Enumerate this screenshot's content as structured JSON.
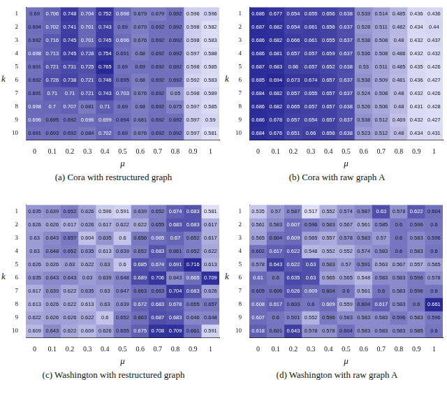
{
  "chart_data": [
    {
      "type": "heatmap",
      "title": "(a) Cora with restructured graph",
      "x_label": "μ",
      "y_label": "k",
      "categories": [
        0,
        0.1,
        0.2,
        0.3,
        0.4,
        0.5,
        0.6,
        0.7,
        0.8,
        0.9,
        1
      ],
      "ylim": [
        0.5,
        10.5
      ],
      "yticks": [
        1,
        2,
        3,
        4,
        5,
        6,
        7,
        8,
        9,
        10
      ],
      "data_labels": true,
      "cells": [
        [
          0.69,
          0.706,
          0.748,
          0.704,
          0.752,
          0.698,
          0.679,
          0.679,
          0.692,
          0.596,
          0.596
        ],
        [
          0.694,
          0.702,
          0.741,
          0.701,
          0.743,
          0.69,
          0.679,
          0.692,
          0.692,
          0.598,
          0.582
        ],
        [
          0.692,
          0.716,
          0.745,
          0.701,
          0.745,
          0.696,
          0.676,
          0.692,
          0.692,
          0.598,
          0.583
        ],
        [
          0.698,
          0.713,
          0.745,
          0.728,
          0.754,
          0.691,
          0.68,
          0.692,
          0.692,
          0.597,
          0.588
        ],
        [
          0.691,
          0.721,
          0.731,
          0.725,
          0.765,
          0.69,
          0.69,
          0.692,
          0.692,
          0.598,
          0.585
        ],
        [
          0.692,
          0.726,
          0.738,
          0.721,
          0.746,
          0.695,
          0.68,
          0.692,
          0.692,
          0.592,
          0.583
        ],
        [
          0.691,
          0.71,
          0.71,
          0.721,
          0.743,
          0.703,
          0.676,
          0.692,
          0.65,
          0.598,
          0.589
        ],
        [
          0.698,
          0.7,
          0.707,
          0.681,
          0.71,
          0.69,
          0.68,
          0.692,
          0.675,
          0.597,
          0.585
        ],
        [
          0.696,
          0.695,
          0.692,
          0.696,
          0.699,
          0.694,
          0.681,
          0.692,
          0.692,
          0.597,
          0.59
        ],
        [
          0.691,
          0.693,
          0.692,
          0.684,
          0.702,
          0.69,
          0.676,
          0.692,
          0.692,
          0.597,
          0.581
        ]
      ]
    },
    {
      "type": "heatmap",
      "title": "(b) Cora with raw graph A",
      "x_label": "μ",
      "y_label": "k",
      "categories": [
        0,
        0.1,
        0.2,
        0.3,
        0.4,
        0.5,
        0.6,
        0.7,
        0.8,
        0.9,
        1
      ],
      "ylim": [
        0.5,
        10.5
      ],
      "yticks": [
        1,
        2,
        3,
        4,
        5,
        6,
        7,
        8,
        9,
        10
      ],
      "data_labels": true,
      "cells": [
        [
          0.686,
          0.677,
          0.654,
          0.655,
          0.656,
          0.638,
          0.539,
          0.514,
          0.485,
          0.436,
          0.436
        ],
        [
          0.687,
          0.682,
          0.654,
          0.661,
          0.656,
          0.637,
          0.528,
          0.511,
          0.482,
          0.434,
          0.44
        ],
        [
          0.686,
          0.682,
          0.666,
          0.661,
          0.655,
          0.637,
          0.538,
          0.508,
          0.48,
          0.432,
          0.437
        ],
        [
          0.686,
          0.681,
          0.657,
          0.657,
          0.659,
          0.637,
          0.536,
          0.508,
          0.486,
          0.432,
          0.432
        ],
        [
          0.687,
          0.683,
          0.66,
          0.657,
          0.652,
          0.638,
          0.53,
          0.511,
          0.485,
          0.435,
          0.426
        ],
        [
          0.685,
          0.694,
          0.673,
          0.674,
          0.657,
          0.637,
          0.538,
          0.509,
          0.481,
          0.436,
          0.427
        ],
        [
          0.684,
          0.682,
          0.657,
          0.655,
          0.657,
          0.637,
          0.524,
          0.508,
          0.48,
          0.432,
          0.426
        ],
        [
          0.686,
          0.682,
          0.665,
          0.657,
          0.657,
          0.638,
          0.526,
          0.506,
          0.48,
          0.431,
          0.428
        ],
        [
          0.686,
          0.678,
          0.657,
          0.654,
          0.657,
          0.637,
          0.538,
          0.512,
          0.469,
          0.432,
          0.427
        ],
        [
          0.684,
          0.676,
          0.651,
          0.66,
          0.656,
          0.638,
          0.523,
          0.512,
          0.48,
          0.434,
          0.431
        ]
      ]
    },
    {
      "type": "heatmap",
      "title": "(c) Washington with restructured graph",
      "x_label": "μ",
      "y_label": "k",
      "categories": [
        0,
        0.1,
        0.2,
        0.3,
        0.4,
        0.5,
        0.6,
        0.7,
        0.8,
        0.9,
        1
      ],
      "ylim": [
        0.5,
        10.5
      ],
      "yticks": [
        1,
        2,
        3,
        4,
        5,
        6,
        7,
        8,
        9,
        10
      ],
      "data_labels": true,
      "cells": [
        [
          0.635,
          0.639,
          0.652,
          0.626,
          0.596,
          0.591,
          0.639,
          0.652,
          0.674,
          0.683,
          0.581
        ],
        [
          0.626,
          0.626,
          0.617,
          0.626,
          0.617,
          0.622,
          0.622,
          0.655,
          0.683,
          0.683,
          0.617
        ],
        [
          0.63,
          0.643,
          0.657,
          0.604,
          0.635,
          0.6,
          0.656,
          0.665,
          0.67,
          0.652,
          0.617
        ],
        [
          0.63,
          0.648,
          0.652,
          0.635,
          0.613,
          0.639,
          0.652,
          0.683,
          0.661,
          0.652,
          0.622
        ],
        [
          0.626,
          0.626,
          0.63,
          0.622,
          0.63,
          0.6,
          0.685,
          0.674,
          0.691,
          0.716,
          0.613
        ],
        [
          0.635,
          0.643,
          0.643,
          0.63,
          0.639,
          0.648,
          0.689,
          0.706,
          0.643,
          0.665,
          0.709
        ],
        [
          0.617,
          0.639,
          0.622,
          0.635,
          0.63,
          0.647,
          0.663,
          0.663,
          0.704,
          0.683,
          0.626
        ],
        [
          0.613,
          0.626,
          0.622,
          0.613,
          0.63,
          0.639,
          0.672,
          0.683,
          0.678,
          0.655,
          0.657
        ],
        [
          0.622,
          0.626,
          0.626,
          0.622,
          0.6,
          0.652,
          0.663,
          0.687,
          0.683,
          0.646,
          0.648
        ],
        [
          0.609,
          0.643,
          0.622,
          0.609,
          0.626,
          0.655,
          0.675,
          0.708,
          0.709,
          0.661,
          0.591
        ]
      ]
    },
    {
      "type": "heatmap",
      "title": "(d) Washington with raw graph A",
      "x_label": "μ",
      "y_label": "k",
      "categories": [
        0,
        0.1,
        0.2,
        0.3,
        0.4,
        0.5,
        0.6,
        0.7,
        0.8,
        0.9,
        1
      ],
      "ylim": [
        0.5,
        10.5
      ],
      "yticks": [
        1,
        2,
        3,
        4,
        5,
        6,
        7,
        8,
        9,
        10
      ],
      "data_labels": true,
      "cells": [
        [
          0.535,
          0.57,
          0.587,
          0.517,
          0.552,
          0.574,
          0.587,
          0.63,
          0.578,
          0.622,
          0.604
        ],
        [
          0.561,
          0.583,
          0.607,
          0.596,
          0.583,
          0.567,
          0.561,
          0.585,
          0.6,
          0.596,
          0.6
        ],
        [
          0.565,
          0.604,
          0.609,
          0.565,
          0.557,
          0.578,
          0.583,
          0.57,
          0.6,
          0.583,
          0.596
        ],
        [
          0.602,
          0.617,
          0.622,
          0.548,
          0.552,
          0.552,
          0.574,
          0.583,
          0.6,
          0.583,
          0.6
        ],
        [
          0.578,
          0.643,
          0.622,
          0.63,
          0.583,
          0.57,
          0.591,
          0.563,
          0.567,
          0.557,
          0.565
        ],
        [
          0.61,
          0.6,
          0.635,
          0.63,
          0.565,
          0.565,
          0.548,
          0.583,
          0.583,
          0.596,
          0.578
        ],
        [
          0.605,
          0.606,
          0.626,
          0.609,
          0.604,
          0.6,
          0.561,
          0.6,
          0.583,
          0.596,
          0.6
        ],
        [
          0.608,
          0.617,
          0.603,
          0.6,
          0.609,
          0.559,
          0.604,
          0.617,
          0.583,
          0.6,
          0.661
        ],
        [
          0.607,
          0.6,
          0.591,
          0.552,
          0.596,
          0.583,
          0.583,
          0.583,
          0.596,
          0.583,
          0.596
        ],
        [
          0.618,
          0.601,
          0.643,
          0.578,
          0.578,
          0.604,
          0.583,
          0.583,
          0.583,
          0.585,
          0.6
        ]
      ]
    }
  ]
}
